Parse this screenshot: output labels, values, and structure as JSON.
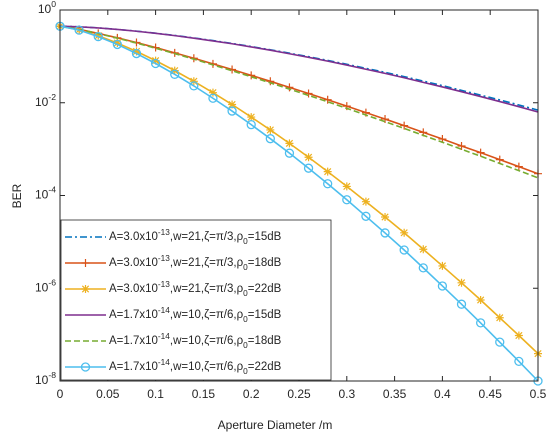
{
  "chart_data": {
    "type": "line",
    "xlabel": "Aperture Diameter /m",
    "ylabel": "BER",
    "log_y": true,
    "grid": false,
    "legend": "lower left",
    "xlim": [
      0,
      0.5
    ],
    "ylim": [
      1e-08,
      1
    ],
    "xticks": [
      0,
      0.05,
      0.1,
      0.15,
      0.2,
      0.25,
      0.3,
      0.35,
      0.4,
      0.45,
      0.5
    ],
    "yticks": [
      {
        "value": 1e-08,
        "label": "10^{-8}"
      },
      {
        "value": 1e-06,
        "label": "10^{-6}"
      },
      {
        "value": 0.0001,
        "label": "10^{-4}"
      },
      {
        "value": 0.01,
        "label": "10^{-2}"
      },
      {
        "value": 1,
        "label": "10^{0}"
      }
    ],
    "x": [
      0,
      0.02,
      0.04,
      0.06,
      0.08,
      0.1,
      0.12,
      0.14,
      0.16,
      0.18,
      0.2,
      0.22,
      0.24,
      0.26,
      0.28,
      0.3,
      0.32,
      0.34,
      0.36,
      0.38,
      0.4,
      0.42,
      0.44,
      0.46,
      0.48,
      0.5
    ],
    "series": [
      {
        "name": "A=3.0x10^{-13},w=21,ζ=π/3,ρ_{0}=15dB",
        "color": "#0072bd",
        "line_style": "dashdot",
        "marker": "none",
        "values": [
          0.447,
          0.435,
          0.411,
          0.382,
          0.35,
          0.316,
          0.283,
          0.25,
          0.219,
          0.19,
          0.163,
          0.139,
          0.117,
          0.0984,
          0.0818,
          0.0676,
          0.0553,
          0.0452,
          0.0366,
          0.0293,
          0.0234,
          0.0185,
          0.0146,
          0.0115,
          0.00895,
          0.00692
        ]
      },
      {
        "name": "A=3.0x10^{-13},w=21,ζ=π/3,ρ_{0}=18dB",
        "color": "#d95319",
        "line_style": "solid",
        "marker": "plus",
        "values": [
          0.447,
          0.383,
          0.313,
          0.251,
          0.199,
          0.155,
          0.119,
          0.0912,
          0.069,
          0.0521,
          0.0389,
          0.029,
          0.0215,
          0.0158,
          0.0116,
          0.00845,
          0.00612,
          0.00445,
          0.00322,
          0.0023,
          0.00165,
          0.00117,
          0.000839,
          0.000593,
          0.000419,
          0.000295
        ]
      },
      {
        "name": "A=3.0x10^{-13},w=21,ζ=π/3,ρ_{0}=22dB",
        "color": "#edb120",
        "line_style": "solid",
        "marker": "star",
        "values": [
          0.447,
          0.373,
          0.279,
          0.194,
          0.128,
          0.0809,
          0.0493,
          0.029,
          0.0165,
          0.00916,
          0.00491,
          0.00259,
          0.00133,
          0.000668,
          0.000327,
          0.000157,
          7.36e-05,
          3.44e-05,
          1.57e-05,
          6.93e-06,
          3.03e-06,
          1.31e-06,
          5.58e-07,
          2.31e-07,
          9.57e-08,
          3.89e-08
        ]
      },
      {
        "name": "A=1.7x10^{-14},w=10,ζ=π/6,ρ_{0}=15dB",
        "color": "#7e2f8e",
        "line_style": "solid",
        "marker": "none",
        "values": [
          0.447,
          0.434,
          0.41,
          0.381,
          0.348,
          0.314,
          0.28,
          0.247,
          0.215,
          0.187,
          0.16,
          0.136,
          0.114,
          0.0953,
          0.0789,
          0.0649,
          0.0528,
          0.043,
          0.0346,
          0.0275,
          0.0219,
          0.0173,
          0.0136,
          0.0106,
          0.00822,
          0.00631
        ]
      },
      {
        "name": "A=1.7x10^{-14},w=10,ζ=π/6,ρ_{0}=18dB",
        "color": "#77ac30",
        "line_style": "dashed",
        "marker": "none",
        "values": [
          0.447,
          0.381,
          0.31,
          0.247,
          0.194,
          0.15,
          0.115,
          0.0871,
          0.0655,
          0.049,
          0.0363,
          0.0269,
          0.0197,
          0.0144,
          0.0105,
          0.00757,
          0.00543,
          0.00391,
          0.0028,
          0.00198,
          0.00141,
          0.000993,
          0.000703,
          0.000491,
          0.000344,
          0.00024
        ]
      },
      {
        "name": "A=1.7x10^{-14},w=10,ζ=π/6,ρ_{0}=22dB",
        "color": "#4dbeee",
        "line_style": "solid",
        "marker": "circle",
        "values": [
          0.447,
          0.368,
          0.267,
          0.181,
          0.115,
          0.0702,
          0.041,
          0.0231,
          0.0125,
          0.00662,
          0.00337,
          0.00168,
          0.000818,
          0.000388,
          0.000179,
          8.09e-05,
          3.56e-05,
          1.56e-05,
          6.68e-06,
          2.75e-06,
          1.12e-06,
          4.53e-07,
          1.79e-07,
          6.89e-08,
          2.65e-08,
          1e-08
        ]
      }
    ]
  }
}
